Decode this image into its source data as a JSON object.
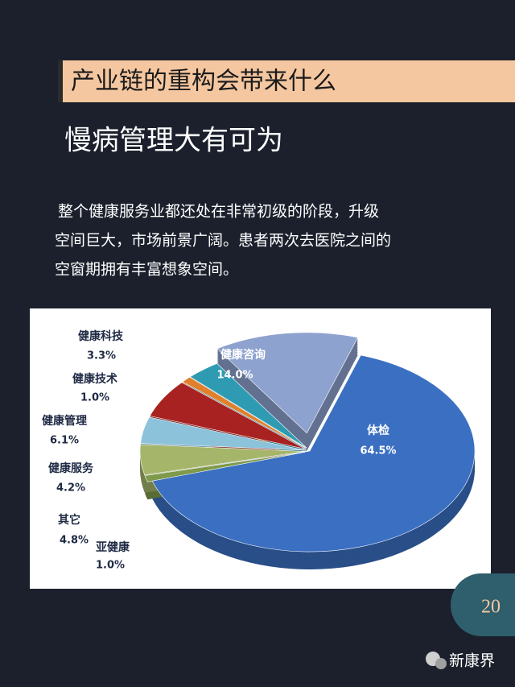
{
  "header": {
    "title": "产业链的重构会带来什么",
    "subtitle": "慢病管理大有可为",
    "paragraph": [
      "整个健康服务业都还处在非常初级的阶段，升级",
      "空间巨大，市场前景广阔。患者两次去医院之间的",
      "空窗期拥有丰富想象空间。"
    ]
  },
  "chart_data": {
    "type": "pie",
    "categories": [
      "体检",
      "亚健康",
      "其它",
      "健康服务",
      "健康管理",
      "健康技术",
      "健康科技",
      "健康咨询"
    ],
    "values": [
      64.5,
      1.0,
      4.8,
      4.2,
      6.1,
      1.0,
      3.3,
      14.0
    ],
    "value_labels": [
      "64.5%",
      "1.0%",
      "4.8%",
      "4.2%",
      "6.1%",
      "1.0%",
      "3.3%",
      "14.0%"
    ],
    "colors": [
      "#3b6fc2",
      "#7e9a4a",
      "#a5b66a",
      "#8cc3db",
      "#a82222",
      "#e0802c",
      "#2f9bb3",
      "#8ea2cf"
    ]
  },
  "footer": {
    "page_number": "20",
    "brand": "新康界"
  }
}
